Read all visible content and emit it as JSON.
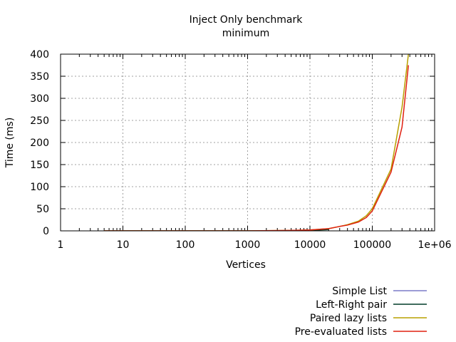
{
  "chart_data": {
    "type": "line",
    "title": "Inject Only benchmark",
    "subtitle": "minimum",
    "xlabel": "Vertices",
    "ylabel": "Time (ms)",
    "xscale": "log",
    "xlim": [
      1,
      1000000
    ],
    "ylim": [
      0,
      400
    ],
    "x_ticks": [
      {
        "value": 1,
        "label": "1"
      },
      {
        "value": 10,
        "label": "10"
      },
      {
        "value": 100,
        "label": "100"
      },
      {
        "value": 1000,
        "label": "1000"
      },
      {
        "value": 10000,
        "label": "10000"
      },
      {
        "value": 100000,
        "label": "100000"
      },
      {
        "value": 1000000,
        "label": "1e+06"
      }
    ],
    "y_ticks": [
      {
        "value": 0,
        "label": "0"
      },
      {
        "value": 50,
        "label": "50"
      },
      {
        "value": 100,
        "label": "100"
      },
      {
        "value": 150,
        "label": "150"
      },
      {
        "value": 200,
        "label": "200"
      },
      {
        "value": 250,
        "label": "250"
      },
      {
        "value": 300,
        "label": "300"
      },
      {
        "value": 350,
        "label": "350"
      },
      {
        "value": 400,
        "label": "400"
      }
    ],
    "grid": true,
    "legend_position": "bottom-right",
    "series": [
      {
        "name": "Simple List",
        "color": "#7b7bc8",
        "points": [
          [
            5,
            0
          ],
          [
            20,
            0
          ],
          [
            100,
            0
          ],
          [
            1000,
            0
          ],
          [
            5000,
            0.5
          ],
          [
            10000,
            1
          ],
          [
            20000,
            4
          ]
        ]
      },
      {
        "name": "Left-Right pair",
        "color": "#003c28",
        "points": [
          [
            5,
            0
          ],
          [
            20,
            0
          ],
          [
            100,
            0
          ],
          [
            1000,
            0
          ],
          [
            5000,
            0.5
          ],
          [
            10000,
            1
          ],
          [
            20000,
            3
          ]
        ]
      },
      {
        "name": "Paired lazy lists",
        "color": "#b8a000",
        "points": [
          [
            5,
            0
          ],
          [
            20,
            0
          ],
          [
            100,
            0
          ],
          [
            1000,
            0
          ],
          [
            5000,
            1
          ],
          [
            10000,
            2
          ],
          [
            20000,
            5
          ],
          [
            30000,
            10
          ],
          [
            40000,
            14
          ],
          [
            60000,
            22
          ],
          [
            80000,
            34
          ],
          [
            100000,
            50
          ],
          [
            200000,
            140
          ],
          [
            300000,
            280
          ],
          [
            380000,
            400
          ]
        ]
      },
      {
        "name": "Pre-evaluated lists",
        "color": "#e02010",
        "points": [
          [
            5,
            0
          ],
          [
            20,
            0
          ],
          [
            100,
            0
          ],
          [
            1000,
            0
          ],
          [
            5000,
            1
          ],
          [
            10000,
            2
          ],
          [
            20000,
            5
          ],
          [
            30000,
            10
          ],
          [
            40000,
            13
          ],
          [
            60000,
            20
          ],
          [
            80000,
            30
          ],
          [
            100000,
            45
          ],
          [
            200000,
            133
          ],
          [
            300000,
            235
          ],
          [
            380000,
            375
          ]
        ]
      }
    ]
  }
}
